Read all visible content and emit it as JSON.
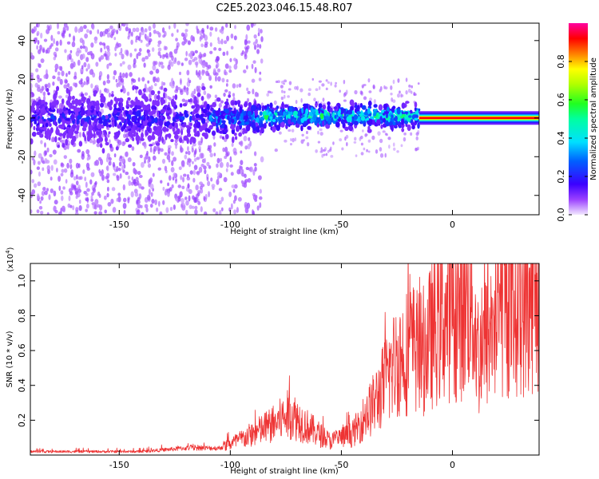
{
  "title": "C2E5.2023.046.15.48.R07",
  "chart_data": [
    {
      "type": "heatmap",
      "name": "spectrogram",
      "xlabel": "Height of straight line (km)",
      "ylabel": "Frequency (Hz)",
      "xlim": [
        -190,
        39
      ],
      "ylim": [
        -50,
        49
      ],
      "xticks": [
        -150,
        -100,
        -50,
        0
      ],
      "yticks": [
        -40,
        -20,
        0,
        20,
        40
      ],
      "colorbar": {
        "label": "Normalized spectral amplitude",
        "range": [
          0.0,
          1.0
        ],
        "ticks": [
          0.0,
          0.2,
          0.4,
          0.6,
          0.8
        ]
      },
      "segments": [
        {
          "x_from": -190,
          "x_to": -110,
          "center_hz": 0,
          "spread_hz": 9,
          "amplitude": 0.18
        },
        {
          "x_from": -110,
          "x_to": -85,
          "center_hz": 0,
          "spread_hz": 6,
          "amplitude": 0.3
        },
        {
          "x_from": -85,
          "x_to": -15,
          "center_hz": 1,
          "spread_hz": 4,
          "amplitude": 0.45
        },
        {
          "x_from": -15,
          "x_to": 39,
          "center_hz": 0,
          "spread_hz": 1.5,
          "amplitude": 0.95
        }
      ]
    },
    {
      "type": "line",
      "name": "snr",
      "xlabel": "Height of straight line (km)",
      "ylabel": "SNR (10 * v/v)",
      "multiplier_label": "(x10",
      "multiplier_exp": "4",
      "xlim": [
        -190,
        39
      ],
      "ylim": [
        0,
        1.1
      ],
      "xticks": [
        -150,
        -100,
        -50,
        0
      ],
      "yticks": [
        0.2,
        0.4,
        0.6,
        0.8,
        1.0
      ],
      "color": "#ee3333",
      "series": [
        {
          "name": "SNR",
          "trend_x": [
            -190,
            -140,
            -120,
            -105,
            -95,
            -80,
            -73,
            -65,
            -55,
            -45,
            -35,
            -25,
            -18,
            -14,
            -5,
            5,
            8,
            12,
            15,
            20,
            25,
            30,
            35,
            39
          ],
          "trend_y": [
            0.02,
            0.02,
            0.04,
            0.04,
            0.09,
            0.18,
            0.24,
            0.16,
            0.08,
            0.12,
            0.3,
            0.55,
            0.62,
            0.58,
            0.78,
            0.82,
            0.95,
            0.55,
            0.65,
            0.8,
            0.85,
            0.86,
            0.88,
            0.9
          ]
        }
      ]
    }
  ]
}
